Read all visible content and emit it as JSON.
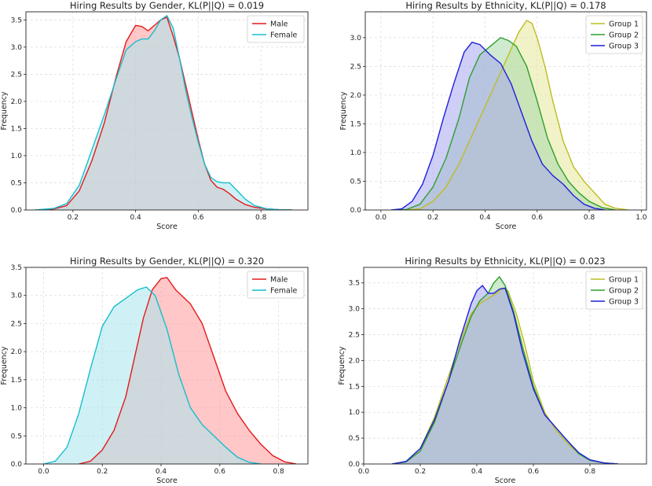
{
  "chart_data": [
    {
      "type": "area",
      "title": "Hiring Results by Gender, KL(P||Q) = 0.019",
      "xlabel": "Score",
      "ylabel": "Frequency",
      "xlim": [
        0.05,
        0.95
      ],
      "ylim": [
        0,
        3.65
      ],
      "xticks": [
        0.2,
        0.4,
        0.6,
        0.8
      ],
      "xtick_labels": [
        "0.2",
        "0.4",
        "0.6",
        "0.8"
      ],
      "yticks": [
        0,
        0.5,
        1.0,
        1.5,
        2.0,
        2.5,
        3.0,
        3.5
      ],
      "ytick_labels": [
        "0.0",
        "0.5",
        "1.0",
        "1.5",
        "2.0",
        "2.5",
        "3.0",
        "3.5"
      ],
      "legend_position": "top-right",
      "series": [
        {
          "name": "Male",
          "color": "#e31a1c",
          "fill": "#ff9999",
          "x": [
            0.08,
            0.14,
            0.18,
            0.22,
            0.26,
            0.3,
            0.34,
            0.37,
            0.4,
            0.42,
            0.44,
            0.46,
            0.48,
            0.5,
            0.52,
            0.54,
            0.56,
            0.58,
            0.6,
            0.62,
            0.64,
            0.66,
            0.68,
            0.7,
            0.72,
            0.75,
            0.78,
            0.82,
            0.86,
            0.9
          ],
          "y": [
            0,
            0.02,
            0.08,
            0.35,
            0.9,
            1.6,
            2.5,
            3.1,
            3.4,
            3.38,
            3.3,
            3.4,
            3.5,
            3.55,
            3.2,
            2.8,
            2.3,
            1.8,
            1.3,
            0.85,
            0.55,
            0.42,
            0.38,
            0.3,
            0.2,
            0.1,
            0.05,
            0.02,
            0.005,
            0
          ]
        },
        {
          "name": "Female",
          "color": "#17becf",
          "fill": "#a8e6ec",
          "x": [
            0.08,
            0.14,
            0.18,
            0.22,
            0.26,
            0.3,
            0.34,
            0.37,
            0.4,
            0.42,
            0.44,
            0.46,
            0.48,
            0.5,
            0.52,
            0.54,
            0.56,
            0.58,
            0.6,
            0.62,
            0.64,
            0.66,
            0.68,
            0.7,
            0.72,
            0.75,
            0.78,
            0.82,
            0.86,
            0.9
          ],
          "y": [
            0,
            0.03,
            0.12,
            0.45,
            1.1,
            1.75,
            2.45,
            2.95,
            3.1,
            3.15,
            3.15,
            3.3,
            3.5,
            3.58,
            3.35,
            2.8,
            2.2,
            1.7,
            1.25,
            0.85,
            0.6,
            0.52,
            0.5,
            0.5,
            0.38,
            0.2,
            0.08,
            0.02,
            0.005,
            0
          ]
        }
      ]
    },
    {
      "type": "area",
      "title": "Hiring Results by Ethnicity, KL(P||Q) = 0.178",
      "xlabel": "Score",
      "ylabel": "Frequency",
      "xlim": [
        -0.06,
        1.02
      ],
      "ylim": [
        0,
        3.45
      ],
      "xticks": [
        0.0,
        0.2,
        0.4,
        0.6,
        0.8,
        1.0
      ],
      "xtick_labels": [
        "0.0",
        "0.2",
        "0.4",
        "0.6",
        "0.8",
        "1.0"
      ],
      "yticks": [
        0,
        0.5,
        1.0,
        1.5,
        2.0,
        2.5,
        3.0
      ],
      "ytick_labels": [
        "0.0",
        "0.5",
        "1.0",
        "1.5",
        "2.0",
        "2.5",
        "3.0"
      ],
      "legend_position": "top-right",
      "series": [
        {
          "name": "Group 1",
          "color": "#bcbd22",
          "fill": "#e8e89a",
          "x": [
            0.1,
            0.15,
            0.2,
            0.25,
            0.3,
            0.35,
            0.4,
            0.45,
            0.5,
            0.53,
            0.56,
            0.58,
            0.6,
            0.63,
            0.66,
            0.7,
            0.74,
            0.78,
            0.82,
            0.86,
            0.9,
            0.95
          ],
          "y": [
            0,
            0.02,
            0.15,
            0.4,
            0.8,
            1.3,
            1.8,
            2.3,
            2.8,
            3.1,
            3.3,
            3.25,
            3.0,
            2.5,
            1.9,
            1.2,
            0.75,
            0.5,
            0.3,
            0.1,
            0.03,
            0
          ]
        },
        {
          "name": "Group 2",
          "color": "#2ca02c",
          "fill": "#a7d9a7",
          "x": [
            0.06,
            0.1,
            0.15,
            0.2,
            0.25,
            0.3,
            0.34,
            0.38,
            0.42,
            0.46,
            0.49,
            0.52,
            0.56,
            0.6,
            0.64,
            0.68,
            0.72,
            0.76,
            0.8,
            0.85,
            0.9
          ],
          "y": [
            0,
            0.01,
            0.1,
            0.4,
            0.9,
            1.6,
            2.3,
            2.7,
            2.85,
            3.0,
            2.95,
            2.85,
            2.5,
            1.9,
            1.25,
            0.8,
            0.5,
            0.3,
            0.15,
            0.04,
            0
          ]
        },
        {
          "name": "Group 3",
          "color": "#1f1fdc",
          "fill": "#a6a6f0",
          "x": [
            0.04,
            0.08,
            0.12,
            0.16,
            0.2,
            0.24,
            0.28,
            0.32,
            0.35,
            0.38,
            0.42,
            0.46,
            0.5,
            0.54,
            0.58,
            0.62,
            0.66,
            0.7,
            0.74,
            0.78,
            0.82,
            0.86
          ],
          "y": [
            0,
            0.02,
            0.15,
            0.45,
            0.95,
            1.6,
            2.2,
            2.75,
            2.92,
            2.88,
            2.7,
            2.55,
            2.2,
            1.7,
            1.2,
            0.8,
            0.6,
            0.45,
            0.25,
            0.1,
            0.03,
            0
          ]
        }
      ]
    },
    {
      "type": "area",
      "title": "Hiring Results by Gender, KL(P||Q) = 0.320",
      "xlabel": "Score",
      "ylabel": "Frequency",
      "xlim": [
        -0.06,
        0.9
      ],
      "ylim": [
        0,
        3.5
      ],
      "xticks": [
        0.0,
        0.2,
        0.4,
        0.6,
        0.8
      ],
      "xtick_labels": [
        "0.0",
        "0.2",
        "0.4",
        "0.6",
        "0.8"
      ],
      "yticks": [
        0,
        0.5,
        1.0,
        1.5,
        2.0,
        2.5,
        3.0,
        3.5
      ],
      "ytick_labels": [
        "0.0",
        "0.5",
        "1.0",
        "1.5",
        "2.0",
        "2.5",
        "3.0",
        "3.5"
      ],
      "legend_position": "top-right",
      "series": [
        {
          "name": "Male",
          "color": "#e31a1c",
          "fill": "#ff9999",
          "x": [
            0.12,
            0.16,
            0.2,
            0.24,
            0.28,
            0.31,
            0.34,
            0.37,
            0.4,
            0.42,
            0.45,
            0.5,
            0.54,
            0.58,
            0.62,
            0.66,
            0.7,
            0.74,
            0.78,
            0.82,
            0.86
          ],
          "y": [
            0,
            0.05,
            0.25,
            0.6,
            1.2,
            1.9,
            2.6,
            3.1,
            3.3,
            3.32,
            3.1,
            2.85,
            2.5,
            1.9,
            1.3,
            0.9,
            0.6,
            0.35,
            0.15,
            0.04,
            0
          ]
        },
        {
          "name": "Female",
          "color": "#17becf",
          "fill": "#a8e6ec",
          "x": [
            0.0,
            0.04,
            0.08,
            0.12,
            0.16,
            0.2,
            0.24,
            0.28,
            0.32,
            0.35,
            0.38,
            0.42,
            0.46,
            0.5,
            0.54,
            0.58,
            0.62,
            0.66,
            0.7,
            0.74
          ],
          "y": [
            0,
            0.05,
            0.3,
            0.9,
            1.7,
            2.45,
            2.8,
            2.95,
            3.1,
            3.15,
            3.0,
            2.4,
            1.6,
            1.0,
            0.7,
            0.5,
            0.3,
            0.12,
            0.03,
            0
          ]
        }
      ]
    },
    {
      "type": "area",
      "title": "Hiring Results by Ethnicity, KL(P||Q) = 0.023",
      "xlabel": "Score",
      "ylabel": "Frequency",
      "xlim": [
        0.0,
        1.0
      ],
      "ylim": [
        0,
        3.8
      ],
      "xticks": [
        0.0,
        0.2,
        0.4,
        0.6,
        0.8
      ],
      "xtick_labels": [
        "0.0",
        "0.2",
        "0.4",
        "0.6",
        "0.8"
      ],
      "yticks": [
        0,
        0.5,
        1.0,
        1.5,
        2.0,
        2.5,
        3.0,
        3.5
      ],
      "ytick_labels": [
        "0.0",
        "0.5",
        "1.0",
        "1.5",
        "2.0",
        "2.5",
        "3.0",
        "3.5"
      ],
      "legend_position": "top-right",
      "series": [
        {
          "name": "Group 1",
          "color": "#bcbd22",
          "fill": "#e8e89a",
          "x": [
            0.1,
            0.15,
            0.2,
            0.25,
            0.3,
            0.35,
            0.38,
            0.41,
            0.44,
            0.47,
            0.49,
            0.51,
            0.54,
            0.57,
            0.6,
            0.64,
            0.68,
            0.72,
            0.76,
            0.8,
            0.85,
            0.9
          ],
          "y": [
            0,
            0.05,
            0.3,
            0.9,
            1.7,
            2.5,
            2.9,
            3.1,
            3.2,
            3.3,
            3.4,
            3.35,
            2.9,
            2.3,
            1.6,
            1.0,
            0.65,
            0.4,
            0.2,
            0.08,
            0.02,
            0
          ]
        },
        {
          "name": "Group 2",
          "color": "#2ca02c",
          "fill": "#a7d9a7",
          "x": [
            0.1,
            0.15,
            0.2,
            0.25,
            0.3,
            0.35,
            0.38,
            0.41,
            0.44,
            0.46,
            0.48,
            0.5,
            0.53,
            0.56,
            0.6,
            0.64,
            0.68,
            0.72,
            0.76,
            0.8,
            0.85,
            0.9
          ],
          "y": [
            0,
            0.04,
            0.25,
            0.8,
            1.6,
            2.4,
            2.85,
            3.15,
            3.3,
            3.5,
            3.62,
            3.45,
            2.95,
            2.3,
            1.5,
            0.95,
            0.7,
            0.45,
            0.2,
            0.07,
            0.02,
            0
          ]
        },
        {
          "name": "Group 3",
          "color": "#1f1fdc",
          "fill": "#a6a6f0",
          "x": [
            0.1,
            0.15,
            0.2,
            0.25,
            0.3,
            0.34,
            0.38,
            0.4,
            0.42,
            0.44,
            0.46,
            0.48,
            0.5,
            0.53,
            0.56,
            0.6,
            0.64,
            0.68,
            0.72,
            0.76,
            0.8,
            0.85,
            0.9
          ],
          "y": [
            0,
            0.05,
            0.3,
            0.85,
            1.6,
            2.4,
            3.1,
            3.35,
            3.45,
            3.3,
            3.3,
            3.38,
            3.4,
            2.9,
            2.2,
            1.45,
            0.95,
            0.7,
            0.45,
            0.22,
            0.08,
            0.02,
            0
          ]
        }
      ]
    }
  ]
}
